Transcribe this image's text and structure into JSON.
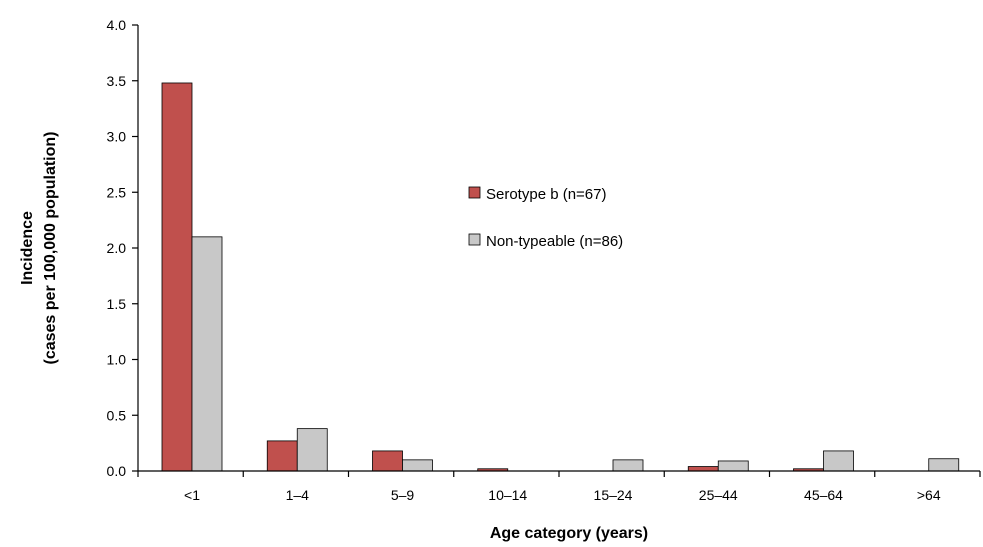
{
  "chart_data": {
    "type": "bar",
    "xlabel": "Age category (years)",
    "ylabel": [
      "Incidence",
      "(cases per 100,000 population)"
    ],
    "categories": [
      "<1",
      "1–4",
      "5–9",
      "10–14",
      "15–24",
      "25–44",
      "45–64",
      ">64"
    ],
    "ylim": [
      0,
      4.0
    ],
    "yticks": [
      "0.0",
      "0.5",
      "1.0",
      "1.5",
      "2.0",
      "2.5",
      "3.0",
      "3.5",
      "4.0"
    ],
    "grid": false,
    "legend_position": "center",
    "series": [
      {
        "name": "Serotype b (n=67)",
        "color": "#C0504D",
        "values": [
          3.48,
          0.27,
          0.18,
          0.02,
          0.0,
          0.04,
          0.02,
          0.0
        ]
      },
      {
        "name": "Non-typeable (n=86)",
        "color": "#C8C8C8",
        "values": [
          2.1,
          0.38,
          0.1,
          0.0,
          0.1,
          0.09,
          0.18,
          0.11
        ]
      }
    ]
  }
}
